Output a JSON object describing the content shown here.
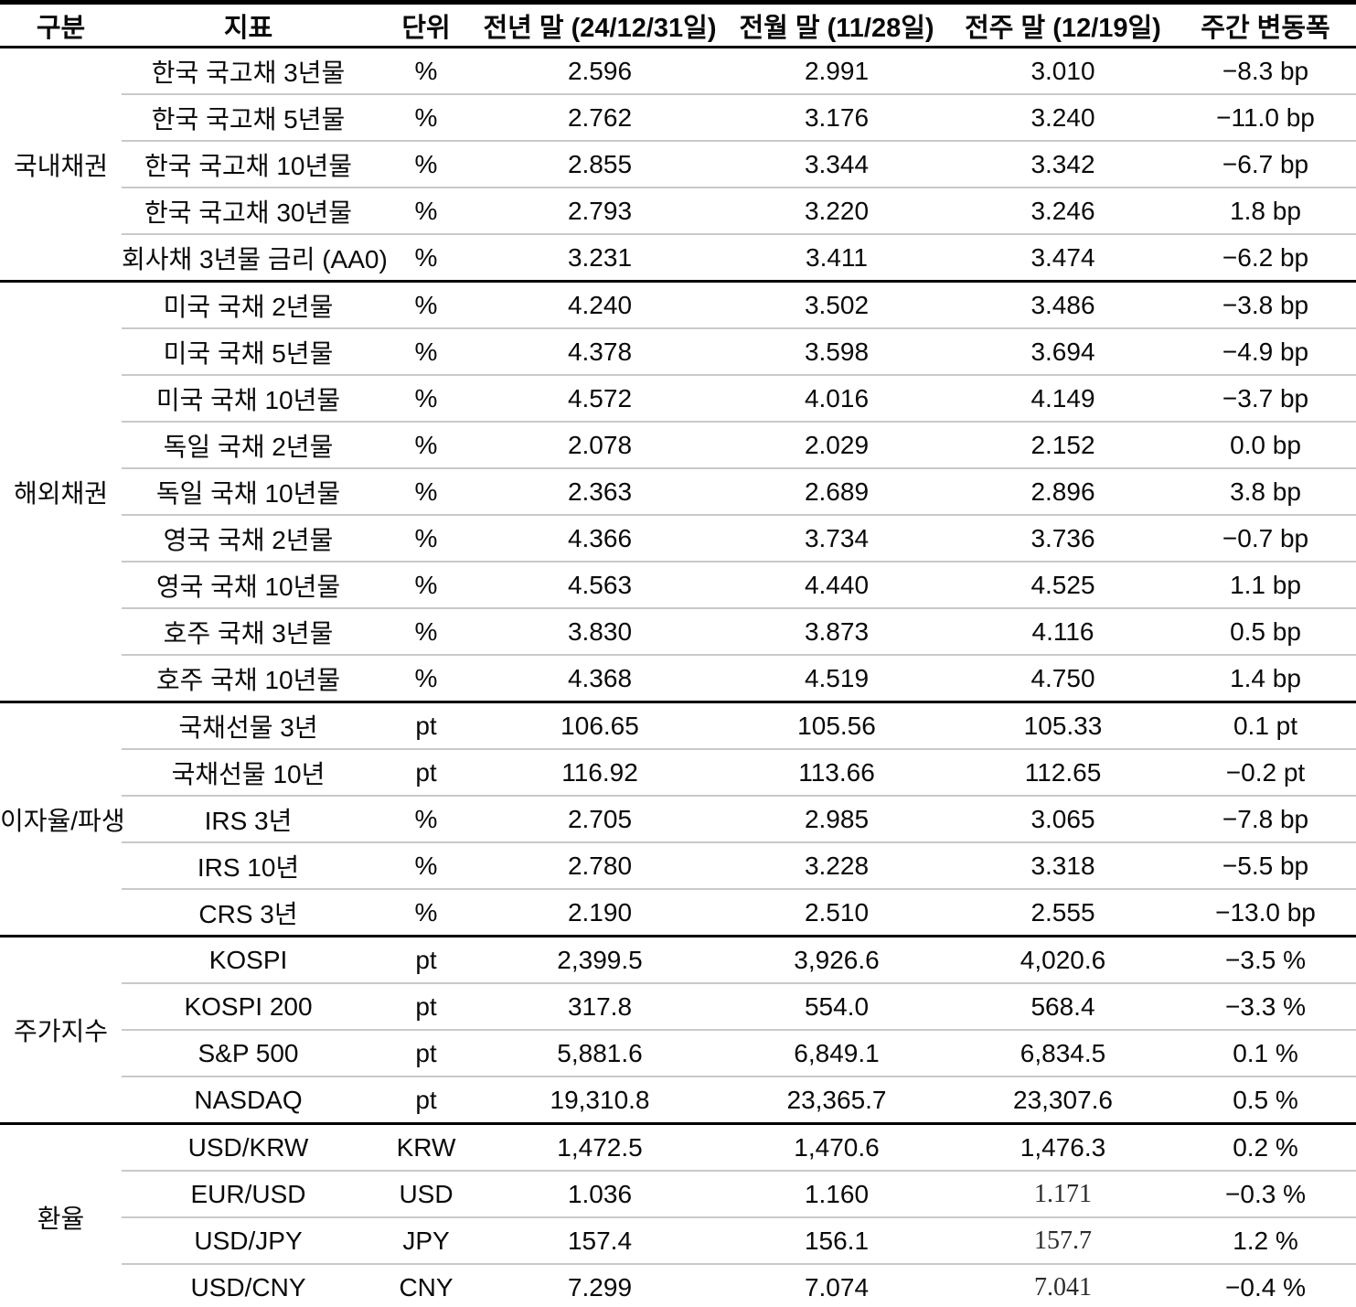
{
  "table": {
    "columns": [
      "구분",
      "지표",
      "단위",
      "전년 말 (24/12/31일)",
      "전월 말 (11/28일)",
      "전주 말 (12/19일)",
      "주간 변동폭"
    ],
    "groups": [
      {
        "name": "국내채권",
        "rows": [
          {
            "indicator": "한국 국고채 3년물",
            "unit": "%",
            "prev_year": "2.596",
            "prev_month": "2.991",
            "prev_week": "3.010",
            "weekly_change": "−8.3 bp"
          },
          {
            "indicator": "한국 국고채 5년물",
            "unit": "%",
            "prev_year": "2.762",
            "prev_month": "3.176",
            "prev_week": "3.240",
            "weekly_change": "−11.0 bp"
          },
          {
            "indicator": "한국 국고채 10년물",
            "unit": "%",
            "prev_year": "2.855",
            "prev_month": "3.344",
            "prev_week": "3.342",
            "weekly_change": "−6.7 bp"
          },
          {
            "indicator": "한국 국고채 30년물",
            "unit": "%",
            "prev_year": "2.793",
            "prev_month": "3.220",
            "prev_week": "3.246",
            "weekly_change": "1.8 bp"
          },
          {
            "indicator": "회사채 3년물 금리 (AA0)",
            "unit": "%",
            "prev_year": "3.231",
            "prev_month": "3.411",
            "prev_week": "3.474",
            "weekly_change": "−6.2 bp"
          }
        ]
      },
      {
        "name": "해외채권",
        "rows": [
          {
            "indicator": "미국 국채 2년물",
            "unit": "%",
            "prev_year": "4.240",
            "prev_month": "3.502",
            "prev_week": "3.486",
            "weekly_change": "−3.8 bp"
          },
          {
            "indicator": "미국 국채 5년물",
            "unit": "%",
            "prev_year": "4.378",
            "prev_month": "3.598",
            "prev_week": "3.694",
            "weekly_change": "−4.9 bp"
          },
          {
            "indicator": "미국 국채 10년물",
            "unit": "%",
            "prev_year": "4.572",
            "prev_month": "4.016",
            "prev_week": "4.149",
            "weekly_change": "−3.7 bp"
          },
          {
            "indicator": "독일 국채 2년물",
            "unit": "%",
            "prev_year": "2.078",
            "prev_month": "2.029",
            "prev_week": "2.152",
            "weekly_change": "0.0 bp"
          },
          {
            "indicator": "독일 국채 10년물",
            "unit": "%",
            "prev_year": "2.363",
            "prev_month": "2.689",
            "prev_week": "2.896",
            "weekly_change": "3.8 bp"
          },
          {
            "indicator": "영국 국채 2년물",
            "unit": "%",
            "prev_year": "4.366",
            "prev_month": "3.734",
            "prev_week": "3.736",
            "weekly_change": "−0.7 bp"
          },
          {
            "indicator": "영국 국채 10년물",
            "unit": "%",
            "prev_year": "4.563",
            "prev_month": "4.440",
            "prev_week": "4.525",
            "weekly_change": "1.1 bp"
          },
          {
            "indicator": "호주 국채 3년물",
            "unit": "%",
            "prev_year": "3.830",
            "prev_month": "3.873",
            "prev_week": "4.116",
            "weekly_change": "0.5 bp"
          },
          {
            "indicator": "호주 국채 10년물",
            "unit": "%",
            "prev_year": "4.368",
            "prev_month": "4.519",
            "prev_week": "4.750",
            "weekly_change": "1.4 bp"
          }
        ]
      },
      {
        "name": "이자율/파생",
        "rows": [
          {
            "indicator": "국채선물 3년",
            "unit": "pt",
            "prev_year": "106.65",
            "prev_month": "105.56",
            "prev_week": "105.33",
            "weekly_change": "0.1 pt"
          },
          {
            "indicator": "국채선물 10년",
            "unit": "pt",
            "prev_year": "116.92",
            "prev_month": "113.66",
            "prev_week": "112.65",
            "weekly_change": "−0.2 pt"
          },
          {
            "indicator": "IRS 3년",
            "unit": "%",
            "prev_year": "2.705",
            "prev_month": "2.985",
            "prev_week": "3.065",
            "weekly_change": "−7.8 bp"
          },
          {
            "indicator": "IRS 10년",
            "unit": "%",
            "prev_year": "2.780",
            "prev_month": "3.228",
            "prev_week": "3.318",
            "weekly_change": "−5.5 bp"
          },
          {
            "indicator": "CRS 3년",
            "unit": "%",
            "prev_year": "2.190",
            "prev_month": "2.510",
            "prev_week": "2.555",
            "weekly_change": "−13.0 bp"
          }
        ]
      },
      {
        "name": "주가지수",
        "rows": [
          {
            "indicator": "KOSPI",
            "unit": "pt",
            "prev_year": "2,399.5",
            "prev_month": "3,926.6",
            "prev_week": "4,020.6",
            "weekly_change": "−3.5 %"
          },
          {
            "indicator": "KOSPI 200",
            "unit": "pt",
            "prev_year": "317.8",
            "prev_month": "554.0",
            "prev_week": "568.4",
            "weekly_change": "−3.3 %"
          },
          {
            "indicator": "S&P 500",
            "unit": "pt",
            "prev_year": "5,881.6",
            "prev_month": "6,849.1",
            "prev_week": "6,834.5",
            "weekly_change": "0.1 %"
          },
          {
            "indicator": "NASDAQ",
            "unit": "pt",
            "prev_year": "19,310.8",
            "prev_month": "23,365.7",
            "prev_week": "23,307.6",
            "weekly_change": "0.5 %"
          }
        ]
      },
      {
        "name": "환율",
        "rows": [
          {
            "indicator": "USD/KRW",
            "unit": "KRW",
            "prev_year": "1,472.5",
            "prev_month": "1,470.6",
            "prev_week": "1,476.3",
            "weekly_change": "0.2 %"
          },
          {
            "indicator": "EUR/USD",
            "unit": "USD",
            "prev_year": "1.036",
            "prev_month": "1.160",
            "prev_week": "1.171",
            "prev_week_serif": true,
            "weekly_change": "−0.3 %"
          },
          {
            "indicator": "USD/JPY",
            "unit": "JPY",
            "prev_year": "157.4",
            "prev_month": "156.1",
            "prev_week": "157.7",
            "prev_week_serif": true,
            "weekly_change": "1.2 %"
          },
          {
            "indicator": "USD/CNY",
            "unit": "CNY",
            "prev_year": "7.299",
            "prev_month": "7.074",
            "prev_week": "7.041",
            "prev_week_serif": true,
            "weekly_change": "−0.4 %"
          }
        ]
      }
    ]
  },
  "chart_data": {
    "type": "table",
    "title": "",
    "columns": [
      "구분",
      "지표",
      "단위",
      "전년 말 (24/12/31일)",
      "전월 말 (11/28일)",
      "전주 말 (12/19일)",
      "주간 변동폭"
    ],
    "rows": [
      [
        "국내채권",
        "한국 국고채 3년물",
        "%",
        "2.596",
        "2.991",
        "3.010",
        "−8.3 bp"
      ],
      [
        "국내채권",
        "한국 국고채 5년물",
        "%",
        "2.762",
        "3.176",
        "3.240",
        "−11.0 bp"
      ],
      [
        "국내채권",
        "한국 국고채 10년물",
        "%",
        "2.855",
        "3.344",
        "3.342",
        "−6.7 bp"
      ],
      [
        "국내채권",
        "한국 국고채 30년물",
        "%",
        "2.793",
        "3.220",
        "3.246",
        "1.8 bp"
      ],
      [
        "국내채권",
        "회사채 3년물 금리 (AA0)",
        "%",
        "3.231",
        "3.411",
        "3.474",
        "−6.2 bp"
      ],
      [
        "해외채권",
        "미국 국채 2년물",
        "%",
        "4.240",
        "3.502",
        "3.486",
        "−3.8 bp"
      ],
      [
        "해외채권",
        "미국 국채 5년물",
        "%",
        "4.378",
        "3.598",
        "3.694",
        "−4.9 bp"
      ],
      [
        "해외채권",
        "미국 국채 10년물",
        "%",
        "4.572",
        "4.016",
        "4.149",
        "−3.7 bp"
      ],
      [
        "해외채권",
        "독일 국채 2년물",
        "%",
        "2.078",
        "2.029",
        "2.152",
        "0.0 bp"
      ],
      [
        "해외채권",
        "독일 국채 10년물",
        "%",
        "2.363",
        "2.689",
        "2.896",
        "3.8 bp"
      ],
      [
        "해외채권",
        "영국 국채 2년물",
        "%",
        "4.366",
        "3.734",
        "3.736",
        "−0.7 bp"
      ],
      [
        "해외채권",
        "영국 국채 10년물",
        "%",
        "4.563",
        "4.440",
        "4.525",
        "1.1 bp"
      ],
      [
        "해외채권",
        "호주 국채 3년물",
        "%",
        "3.830",
        "3.873",
        "4.116",
        "0.5 bp"
      ],
      [
        "해외채권",
        "호주 국채 10년물",
        "%",
        "4.368",
        "4.519",
        "4.750",
        "1.4 bp"
      ],
      [
        "이자율/파생",
        "국채선물 3년",
        "pt",
        "106.65",
        "105.56",
        "105.33",
        "0.1 pt"
      ],
      [
        "이자율/파생",
        "국채선물 10년",
        "pt",
        "116.92",
        "113.66",
        "112.65",
        "−0.2 pt"
      ],
      [
        "이자율/파생",
        "IRS 3년",
        "%",
        "2.705",
        "2.985",
        "3.065",
        "−7.8 bp"
      ],
      [
        "이자율/파생",
        "IRS 10년",
        "%",
        "2.780",
        "3.228",
        "3.318",
        "−5.5 bp"
      ],
      [
        "이자율/파생",
        "CRS 3년",
        "%",
        "2.190",
        "2.510",
        "2.555",
        "−13.0 bp"
      ],
      [
        "주가지수",
        "KOSPI",
        "pt",
        "2,399.5",
        "3,926.6",
        "4,020.6",
        "−3.5 %"
      ],
      [
        "주가지수",
        "KOSPI 200",
        "pt",
        "317.8",
        "554.0",
        "568.4",
        "−3.3 %"
      ],
      [
        "주가지수",
        "S&P 500",
        "pt",
        "5,881.6",
        "6,849.1",
        "6,834.5",
        "0.1 %"
      ],
      [
        "주가지수",
        "NASDAQ",
        "pt",
        "19,310.8",
        "23,365.7",
        "23,307.6",
        "0.5 %"
      ],
      [
        "환율",
        "USD/KRW",
        "KRW",
        "1,472.5",
        "1,470.6",
        "1,476.3",
        "0.2 %"
      ],
      [
        "환율",
        "EUR/USD",
        "USD",
        "1.036",
        "1.160",
        "1.171",
        "−0.3 %"
      ],
      [
        "환율",
        "USD/JPY",
        "JPY",
        "157.4",
        "156.1",
        "157.7",
        "1.2 %"
      ],
      [
        "환율",
        "USD/CNY",
        "CNY",
        "7.299",
        "7.074",
        "7.041",
        "−0.4 %"
      ]
    ]
  }
}
